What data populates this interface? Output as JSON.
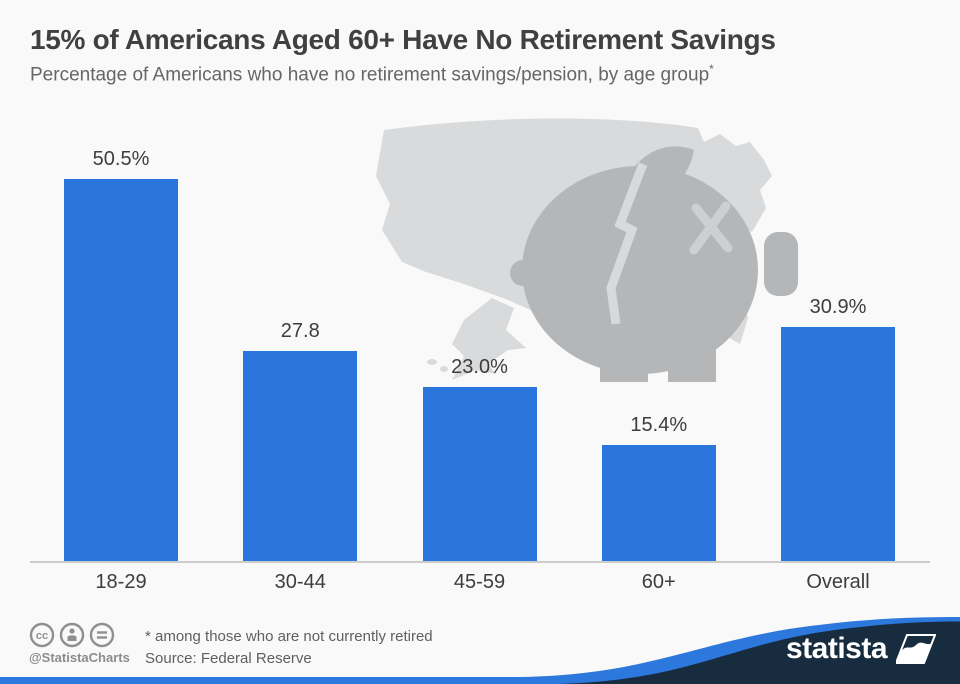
{
  "page": {
    "title": "15% of Americans Aged 60+ Have No Retirement Savings",
    "subtitle": "Percentage of Americans who have no retirement savings/pension, by age group",
    "footnote_marker": "*"
  },
  "chart_data": {
    "type": "bar",
    "categories": [
      "18-29",
      "30-44",
      "45-59",
      "60+",
      "Overall"
    ],
    "values": [
      50.5,
      27.8,
      23.0,
      15.4,
      30.9
    ],
    "value_labels": [
      "50.5%",
      "27.8",
      "23.0%",
      "15.4%",
      "30.9%"
    ],
    "title": "15% of Americans Aged 60+ Have No Retirement Savings",
    "xlabel": "",
    "ylabel": "",
    "ylim": [
      0,
      55
    ],
    "grid": false,
    "legend": "none",
    "bar_color": "#2a76dd"
  },
  "decor": {
    "us_map_icon": "us-map-silhouette",
    "piggy_bank_icon": "broken-piggy-bank",
    "map_color": "#d9dadb",
    "pig_color": "#b4b6b8",
    "crack_color": "#d7d9da"
  },
  "footer": {
    "license_icons": [
      "cc-icon",
      "attribution-person-icon",
      "equals-icon"
    ],
    "handle": "@StatistaCharts",
    "footnote": "* among those who are not currently retired",
    "source": "Source: Federal Reserve",
    "brand": "statista"
  },
  "colors": {
    "background": "#f9f9f9",
    "bar_blue": "#2a76dd",
    "wave_blue": "#2d78dd",
    "wave_navy": "#182c40",
    "baseline_gray": "#cccccc",
    "title_gray": "#404040",
    "text_gray": "#5f5f5f"
  }
}
